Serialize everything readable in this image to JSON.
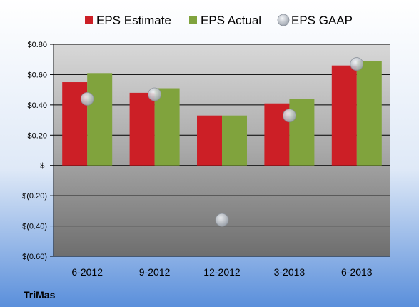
{
  "company": "TriMas",
  "colors": {
    "estimate": "#cc1f26",
    "actual": "#80a33d",
    "gaap": "#b8bec8"
  },
  "chart_data": {
    "type": "bar",
    "categories": [
      "6-2012",
      "9-2012",
      "12-2012",
      "3-2013",
      "6-2013"
    ],
    "series": [
      {
        "name": "EPS Estimate",
        "type": "bar",
        "values": [
          0.55,
          0.48,
          0.33,
          0.41,
          0.66
        ]
      },
      {
        "name": "EPS Actual",
        "type": "bar",
        "values": [
          0.61,
          0.51,
          0.33,
          0.44,
          0.69
        ]
      },
      {
        "name": "EPS GAAP",
        "type": "scatter",
        "values": [
          0.44,
          0.47,
          -0.36,
          0.33,
          0.67
        ]
      }
    ],
    "ylim": [
      -0.6,
      0.8
    ],
    "yticks": [
      {
        "value": 0.8,
        "label": "$0.80"
      },
      {
        "value": 0.6,
        "label": "$0.60"
      },
      {
        "value": 0.4,
        "label": "$0.40"
      },
      {
        "value": 0.2,
        "label": "$0.20"
      },
      {
        "value": 0,
        "label": "$-"
      },
      {
        "value": -0.2,
        "label": "$(0.20)"
      },
      {
        "value": -0.4,
        "label": "$(0.40)"
      },
      {
        "value": -0.6,
        "label": "$(0.60)"
      }
    ],
    "grid": true,
    "legend": "top"
  }
}
